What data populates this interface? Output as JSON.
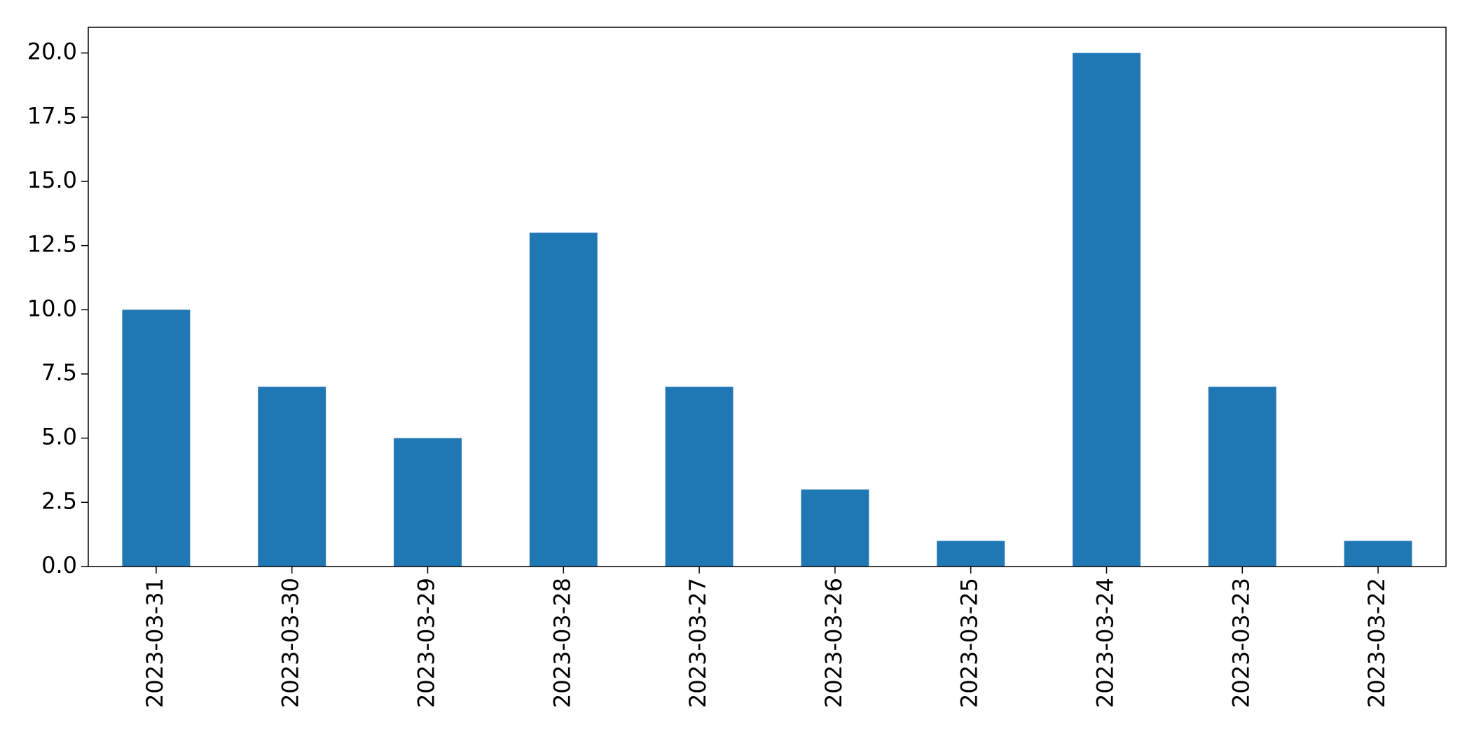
{
  "chart_data": {
    "type": "bar",
    "categories": [
      "2023-03-31",
      "2023-03-30",
      "2023-03-29",
      "2023-03-28",
      "2023-03-27",
      "2023-03-26",
      "2023-03-25",
      "2023-03-24",
      "2023-03-23",
      "2023-03-22"
    ],
    "values": [
      10,
      7,
      5,
      13,
      7,
      3,
      1,
      20,
      7,
      1
    ],
    "color": "#1f77b4",
    "ylim": [
      0,
      21
    ],
    "yticks": [
      {
        "value": 0,
        "label": "0.0"
      },
      2.5,
      {
        "value": 5,
        "label": "5.0"
      },
      7.5,
      {
        "value": 10,
        "label": "10.0"
      },
      12.5,
      {
        "value": 15,
        "label": "15.0"
      },
      17.5,
      {
        "value": 20,
        "label": "20.0"
      }
    ],
    "grid": false
  }
}
